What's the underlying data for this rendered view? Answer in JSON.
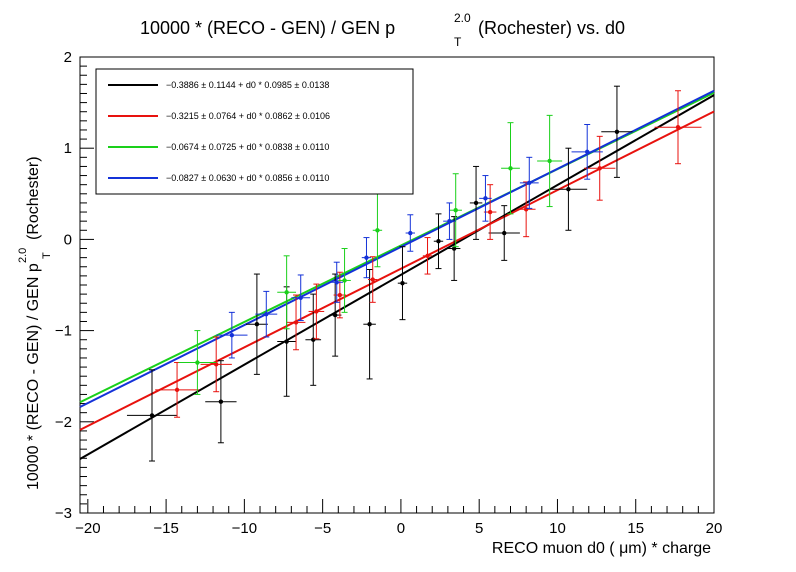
{
  "chart_data": {
    "type": "scatter",
    "title": "10000 * (RECO - GEN) / GEN p",
    "title_sup": "2.0",
    "title_sub": "T",
    "title_suffix": "(Rochester) vs. d0",
    "xlabel": "RECO muon d0 (  μm) * charge",
    "ylabel": "10000 * (RECO - GEN) / GEN p",
    "ylabel_sup": "2.0",
    "ylabel_sub": "T",
    "ylabel_suffix": "(Rochester)",
    "xlim": [
      -20.5,
      20
    ],
    "ylim": [
      -3,
      2
    ],
    "x_ticks": [
      -20,
      -15,
      -10,
      -5,
      0,
      5,
      10,
      15,
      20
    ],
    "x_tick_labels": [
      "−20",
      "−15",
      "−10",
      "−5",
      "0",
      "5",
      "10",
      "15",
      "20"
    ],
    "y_ticks": [
      -3,
      -2,
      -1,
      0,
      1,
      2
    ],
    "y_tick_labels": [
      "−3",
      "−2",
      "−1",
      "0",
      "1",
      "2"
    ],
    "grid": false,
    "legend_position": "top-left",
    "series": [
      {
        "color": "#000000",
        "label": "−0.3886 ± 0.1144 + d0 * 0.0985 ± 0.0138",
        "fit": {
          "intercept": -0.3886,
          "slope": 0.0985
        },
        "points": [
          {
            "x": -15.9,
            "y": -1.93,
            "xerr": 1.6,
            "yerr": 0.5
          },
          {
            "x": -11.5,
            "y": -1.78,
            "xerr": 1.0,
            "yerr": 0.45
          },
          {
            "x": -9.2,
            "y": -0.93,
            "xerr": 0.7,
            "yerr": 0.55
          },
          {
            "x": -7.3,
            "y": -1.12,
            "xerr": 0.6,
            "yerr": 0.6
          },
          {
            "x": -5.6,
            "y": -1.1,
            "xerr": 0.5,
            "yerr": 0.5
          },
          {
            "x": -4.2,
            "y": -0.83,
            "xerr": 0.4,
            "yerr": 0.45
          },
          {
            "x": -2.0,
            "y": -0.93,
            "xerr": 0.4,
            "yerr": 0.6
          },
          {
            "x": 0.1,
            "y": -0.48,
            "xerr": 0.3,
            "yerr": 0.4
          },
          {
            "x": 2.4,
            "y": -0.02,
            "xerr": 0.3,
            "yerr": 0.3
          },
          {
            "x": 3.4,
            "y": -0.1,
            "xerr": 0.4,
            "yerr": 0.35
          },
          {
            "x": 4.8,
            "y": 0.4,
            "xerr": 0.4,
            "yerr": 0.4
          },
          {
            "x": 6.6,
            "y": 0.07,
            "xerr": 1.0,
            "yerr": 0.3
          },
          {
            "x": 10.7,
            "y": 0.55,
            "xerr": 1.2,
            "yerr": 0.45
          },
          {
            "x": 13.8,
            "y": 1.18,
            "xerr": 1.0,
            "yerr": 0.5
          }
        ]
      },
      {
        "color": "#e8120e",
        "label": "−0.3215 ± 0.0764 + d0 * 0.0862 ± 0.0106",
        "fit": {
          "intercept": -0.3215,
          "slope": 0.0862
        },
        "points": [
          {
            "x": -14.3,
            "y": -1.65,
            "xerr": 1.4,
            "yerr": 0.3
          },
          {
            "x": -11.8,
            "y": -1.37,
            "xerr": 1.0,
            "yerr": 0.3
          },
          {
            "x": -6.7,
            "y": -0.91,
            "xerr": 0.6,
            "yerr": 0.3
          },
          {
            "x": -5.4,
            "y": -0.79,
            "xerr": 0.5,
            "yerr": 0.3
          },
          {
            "x": -3.9,
            "y": -0.61,
            "xerr": 0.4,
            "yerr": 0.25
          },
          {
            "x": -1.8,
            "y": -0.44,
            "xerr": 0.3,
            "yerr": 0.25
          },
          {
            "x": 1.7,
            "y": -0.18,
            "xerr": 0.3,
            "yerr": 0.2
          },
          {
            "x": 5.7,
            "y": 0.3,
            "xerr": 0.4,
            "yerr": 0.3
          },
          {
            "x": 8.0,
            "y": 0.33,
            "xerr": 0.6,
            "yerr": 0.3
          },
          {
            "x": 12.7,
            "y": 0.78,
            "xerr": 1.0,
            "yerr": 0.35
          },
          {
            "x": 17.7,
            "y": 1.23,
            "xerr": 1.5,
            "yerr": 0.4
          }
        ]
      },
      {
        "color": "#1ad01a",
        "label": "−0.0674 ± 0.0725 + d0 * 0.0838 ± 0.0110",
        "fit": {
          "intercept": -0.0674,
          "slope": 0.0838
        },
        "points": [
          {
            "x": -13.0,
            "y": -1.35,
            "xerr": 1.2,
            "yerr": 0.35
          },
          {
            "x": -7.3,
            "y": -0.58,
            "xerr": 0.6,
            "yerr": 0.4
          },
          {
            "x": -3.6,
            "y": -0.45,
            "xerr": 0.4,
            "yerr": 0.35
          },
          {
            "x": -1.5,
            "y": 0.1,
            "xerr": 0.3,
            "yerr": 0.4
          },
          {
            "x": 3.5,
            "y": 0.32,
            "xerr": 0.4,
            "yerr": 0.4
          },
          {
            "x": 7.0,
            "y": 0.78,
            "xerr": 0.6,
            "yerr": 0.5
          },
          {
            "x": 9.5,
            "y": 0.86,
            "xerr": 0.8,
            "yerr": 0.5
          }
        ]
      },
      {
        "color": "#1432d8",
        "label": "−0.0827 ± 0.0630 + d0 * 0.0856 ± 0.0110",
        "fit": {
          "intercept": -0.0827,
          "slope": 0.0856
        },
        "points": [
          {
            "x": -10.8,
            "y": -1.05,
            "xerr": 1.0,
            "yerr": 0.25
          },
          {
            "x": -8.6,
            "y": -0.82,
            "xerr": 0.7,
            "yerr": 0.25
          },
          {
            "x": -6.4,
            "y": -0.64,
            "xerr": 0.6,
            "yerr": 0.25
          },
          {
            "x": -4.1,
            "y": -0.47,
            "xerr": 0.4,
            "yerr": 0.22
          },
          {
            "x": -2.2,
            "y": -0.2,
            "xerr": 0.3,
            "yerr": 0.22
          },
          {
            "x": 0.6,
            "y": 0.07,
            "xerr": 0.3,
            "yerr": 0.2
          },
          {
            "x": 3.1,
            "y": 0.2,
            "xerr": 0.4,
            "yerr": 0.2
          },
          {
            "x": 5.4,
            "y": 0.45,
            "xerr": 0.4,
            "yerr": 0.25
          },
          {
            "x": 8.2,
            "y": 0.62,
            "xerr": 0.6,
            "yerr": 0.28
          },
          {
            "x": 11.9,
            "y": 0.96,
            "xerr": 1.0,
            "yerr": 0.3
          }
        ]
      }
    ]
  }
}
